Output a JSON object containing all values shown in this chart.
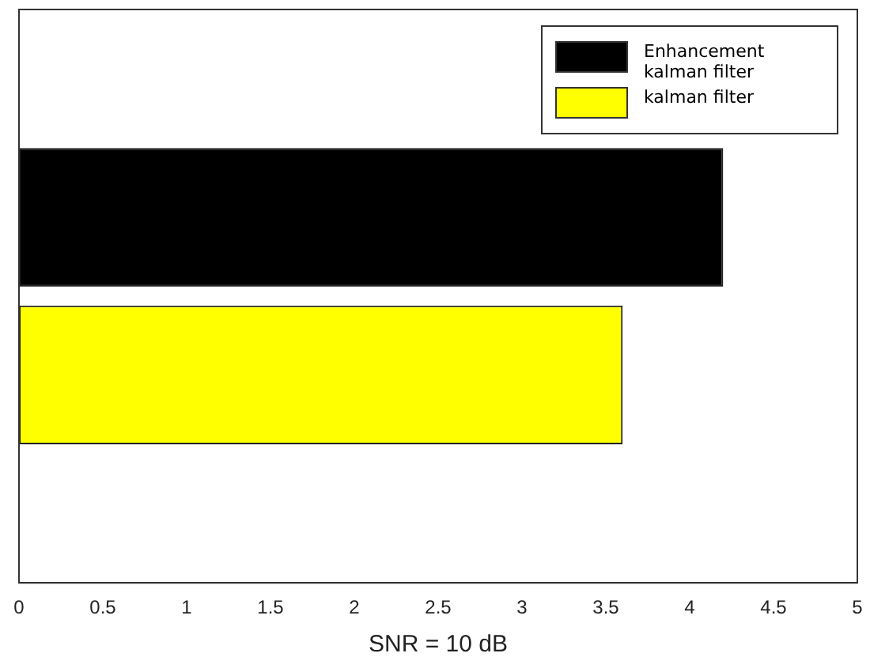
{
  "chart_data": {
    "type": "bar",
    "orientation": "horizontal",
    "xlabel": "SNR = 10 dB",
    "categories": [
      null
    ],
    "series": [
      {
        "name": "Enhancement kalman filter",
        "color": "#000000",
        "values": [
          4.2
        ]
      },
      {
        "name": "kalman filter",
        "color": "#ffff00",
        "values": [
          3.6
        ]
      }
    ],
    "xlim": [
      0,
      5
    ],
    "xticks": [
      0,
      0.5,
      1,
      1.5,
      2,
      2.5,
      3,
      3.5,
      4,
      4.5,
      5
    ],
    "grid": false,
    "legend": "top right"
  }
}
